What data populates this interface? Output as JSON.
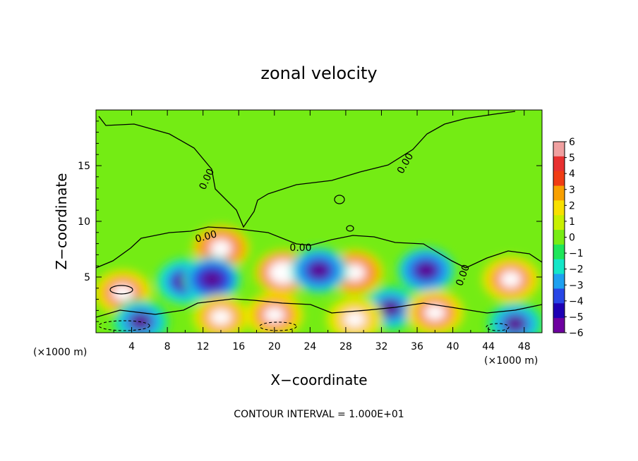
{
  "chart_data": {
    "type": "heatmap",
    "title": "zonal velocity",
    "xlabel": "X−coordinate",
    "ylabel": "Z−coordinate",
    "x_unit_label": "(×1000 m)",
    "xlim": [
      0,
      50
    ],
    "ylim": [
      0,
      20
    ],
    "x_ticks": [
      "4",
      "8",
      "12",
      "16",
      "20",
      "24",
      "28",
      "32",
      "36",
      "40",
      "44",
      "48"
    ],
    "y_ticks": [
      "5",
      "10",
      "15"
    ],
    "contour_labels": [
      "0.00",
      "0.00",
      "0.00",
      "0.00",
      "0.00"
    ],
    "footer": "CONTOUR INTERVAL = 1.000E+01",
    "colorbar": {
      "ticks": [
        "6",
        "5",
        "4",
        "3",
        "2",
        "1",
        "0",
        "−1",
        "−2",
        "−3",
        "−4",
        "−5",
        "−6"
      ],
      "range": [
        -6,
        6
      ],
      "colors": [
        "#f0a0a0",
        "#e83030",
        "#f03c14",
        "#f8a000",
        "#f8e000",
        "#c8f000",
        "#78ec14",
        "#1ee65a",
        "#14e6c8",
        "#1ea0f0",
        "#2846e6",
        "#1e00b4",
        "#6e00a0"
      ]
    },
    "field_features": [
      {
        "x": 14,
        "z": 7.6,
        "u": 0.8
      },
      {
        "x": 21,
        "z": 5.4,
        "u": 0.85
      },
      {
        "x": 29,
        "z": 5.4,
        "u": 0.8
      },
      {
        "x": 46.5,
        "z": 4.8,
        "u": 0.75
      },
      {
        "x": 3,
        "z": 3.6,
        "u": 0.7
      },
      {
        "x": 10,
        "z": 4.6,
        "u": -0.75
      },
      {
        "x": 13,
        "z": 4.8,
        "u": -0.85
      },
      {
        "x": 25,
        "z": 5.6,
        "u": -0.8
      },
      {
        "x": 37,
        "z": 5.6,
        "u": -0.8
      },
      {
        "x": 33,
        "z": 2.2,
        "u": -0.6
      },
      {
        "x": 20,
        "z": 1.6,
        "u": 0.7
      },
      {
        "x": 38,
        "z": 1.8,
        "u": 0.7
      },
      {
        "x": 5,
        "z": 1,
        "u": -0.6
      },
      {
        "x": 47,
        "z": 0.8,
        "u": -0.6
      },
      {
        "x": 14,
        "z": 1.4,
        "u": 0.6
      },
      {
        "x": 29,
        "z": 1.2,
        "u": 0.5
      }
    ]
  }
}
